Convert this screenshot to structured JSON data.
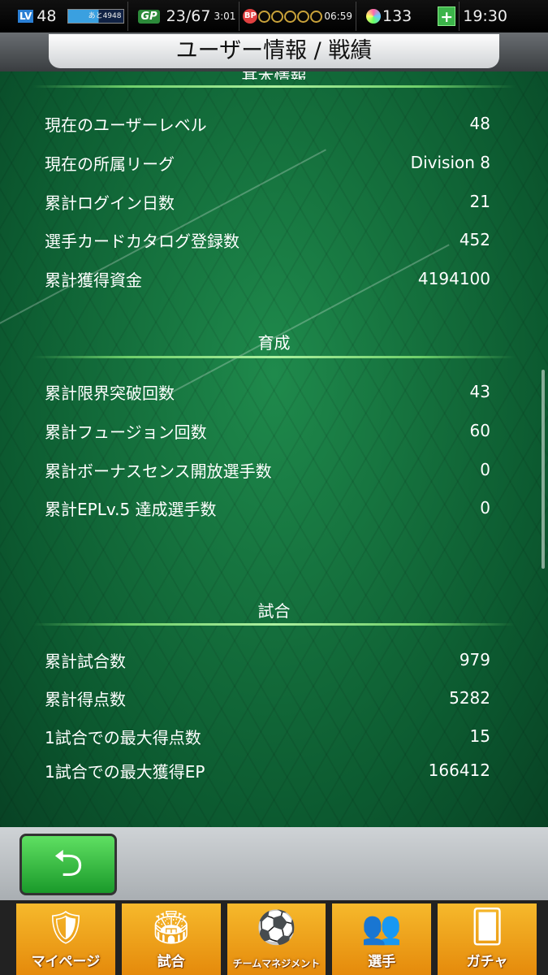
{
  "status": {
    "level_label": "LV",
    "level": "48",
    "xp_remaining": "あと4948",
    "gp_label": "GP",
    "gp": "23/67",
    "gp_timer": "3:01",
    "bp_label": "BP",
    "bp_timer": "06:59",
    "gems": "133",
    "clock": "19:30"
  },
  "header": {
    "title": "ユーザー情報 / 戦績"
  },
  "sections": [
    {
      "title": "基本情報",
      "rows": [
        {
          "label": "現在のユーザーレベル",
          "value": "48"
        },
        {
          "label": "現在の所属リーグ",
          "value": "Division 8"
        },
        {
          "label": "累計ログイン日数",
          "value": "21"
        },
        {
          "label": "選手カードカタログ登録数",
          "value": "452"
        },
        {
          "label": "累計獲得資金",
          "value": "4194100"
        }
      ]
    },
    {
      "title": "育成",
      "rows": [
        {
          "label": "累計限界突破回数",
          "value": "43"
        },
        {
          "label": "累計フュージョン回数",
          "value": "60"
        },
        {
          "label": "累計ボーナスセンス開放選手数",
          "value": "0"
        },
        {
          "label": "累計EPLv.5 達成選手数",
          "value": "0"
        }
      ]
    },
    {
      "title": "試合",
      "rows": [
        {
          "label": "累計試合数",
          "value": "979"
        },
        {
          "label": "累計得点数",
          "value": "5282"
        },
        {
          "label": "1試合での最大得点数",
          "value": "15"
        },
        {
          "label": "1試合での最大獲得EP",
          "value": "166412"
        }
      ]
    }
  ],
  "nav": [
    {
      "label": "マイページ",
      "icon": "shield-icon"
    },
    {
      "label": "試合",
      "icon": "stadium-icon"
    },
    {
      "label": "チームマネジメント",
      "icon": "formation-icon"
    },
    {
      "label": "選手",
      "icon": "players-icon"
    },
    {
      "label": "ガチャ",
      "icon": "cards-icon"
    }
  ],
  "back_icon": "return-arrow-icon"
}
